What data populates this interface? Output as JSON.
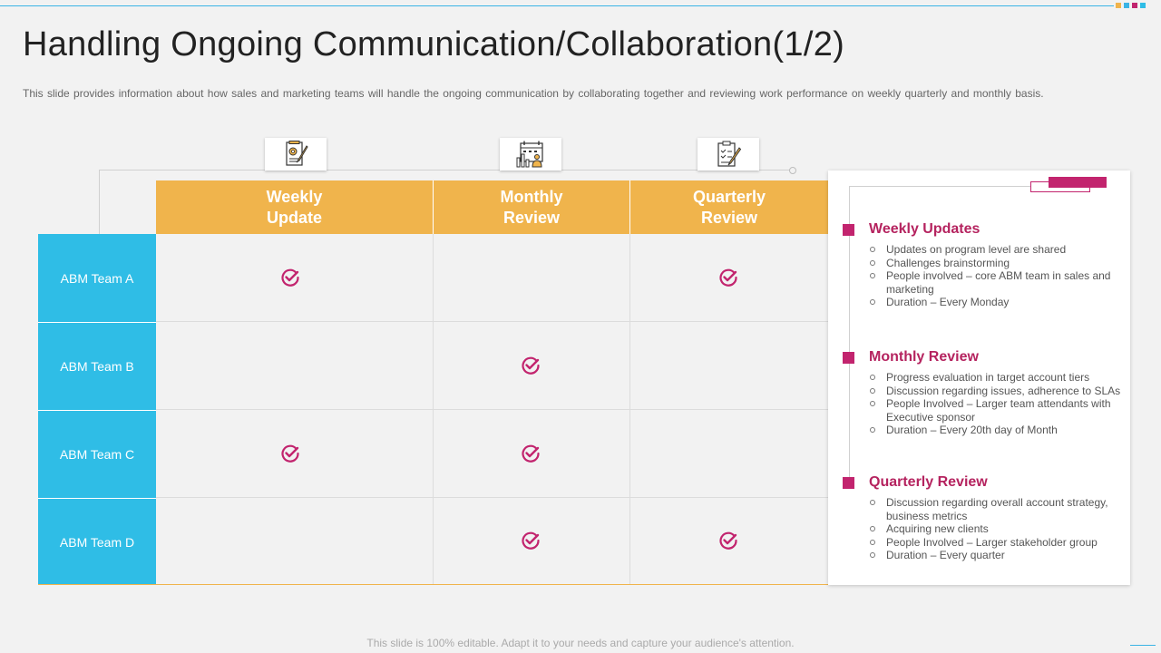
{
  "title": "Handling Ongoing Communication/Collaboration(1/2)",
  "subtitle": "This slide provides  information  about  how sales and marketing teams will handle the ongoing  communication  by collaborating together and reviewing  work performance  on weekly quarterly and monthly basis.",
  "accent_colors": {
    "header": "#f0b44c",
    "row": "#2fbde6",
    "magenta": "#c2246e",
    "top_line": "#3bb4e5"
  },
  "icons": [
    "settings-document-icon",
    "calendar-chart-icon",
    "checklist-edit-icon"
  ],
  "columns": [
    "Weekly\nUpdate",
    "Monthly\nReview",
    "Quarterly\nReview"
  ],
  "rows": [
    {
      "label": "ABM Team A",
      "checks": [
        true,
        false,
        true
      ]
    },
    {
      "label": "ABM Team B",
      "checks": [
        false,
        true,
        false
      ]
    },
    {
      "label": "ABM Team C",
      "checks": [
        true,
        true,
        false
      ]
    },
    {
      "label": "ABM Team D",
      "checks": [
        false,
        true,
        true
      ]
    }
  ],
  "sections": [
    {
      "title": "Weekly Updates",
      "items": [
        "Updates on program level are shared",
        "Challenges brainstorming",
        "People involved – core ABM team in sales and marketing",
        "Duration – Every Monday"
      ]
    },
    {
      "title": "Monthly Review",
      "items": [
        "Progress evaluation in target account tiers",
        "Discussion regarding issues, adherence to SLAs",
        "People Involved – Larger team attendants with Executive sponsor",
        "Duration – Every 20th day of Month"
      ]
    },
    {
      "title": "Quarterly Review",
      "items": [
        "Discussion regarding overall account strategy, business metrics",
        "Acquiring new clients",
        "People Involved – Larger stakeholder group",
        "Duration – Every quarter"
      ]
    }
  ],
  "footer": "This slide is 100% editable. Adapt it to your needs and capture your audience's attention."
}
